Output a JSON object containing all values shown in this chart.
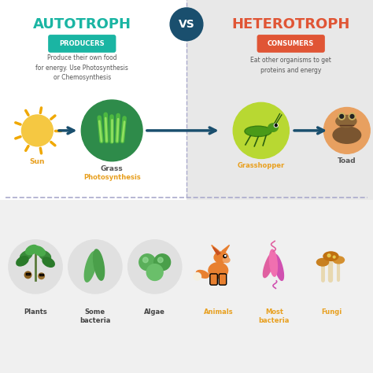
{
  "bg_left": "#ffffff",
  "bg_right": "#e8e8e8",
  "title_left": "AUTOTROPH",
  "title_right": "HETEROTROPH",
  "vs_text": "VS",
  "vs_circle_color": "#1a4f6e",
  "vs_text_color": "#ffffff",
  "title_left_color": "#1ab5a3",
  "title_right_color": "#e05535",
  "badge_left": "PRODUCERS",
  "badge_right": "CONSUMERS",
  "badge_left_color": "#1ab5a3",
  "badge_right_color": "#e05535",
  "badge_text_color": "#ffffff",
  "desc_left": "Produce their own food\nfor energy. Use Photosynthesis\nor Chemosynthesis",
  "desc_right": "Eat other organisms to get\nproteins and energy",
  "desc_color": "#555555",
  "arrow_color": "#1a4f6e",
  "sun_color": "#f5c842",
  "sun_outline": "#f0a800",
  "grass_circle_color": "#2e8b4a",
  "grasshopper_circle_color": "#b8d832",
  "toad_circle_color": "#e8a060",
  "label_sun": "Sun",
  "label_grass": "Grass",
  "label_photo": "Photosynthesis",
  "label_grasshopper": "Grasshopper",
  "label_toad": "Toad",
  "label_color_sun": "#e8a020",
  "label_color_grass": "#555555",
  "label_color_photo": "#e8a020",
  "label_color_grasshopper": "#e8a020",
  "label_color_toad": "#555555",
  "divider_color": "#aaaacc",
  "bottom_bg": "#f0f0f0",
  "bottom_items_left": [
    "Plants",
    "Some\nbacteria",
    "Algae"
  ],
  "bottom_items_right": [
    "Animals",
    "Most\nbacteria",
    "Fungi"
  ],
  "bottom_label_color_left": "#444444",
  "bottom_label_color_right": "#e8a020"
}
